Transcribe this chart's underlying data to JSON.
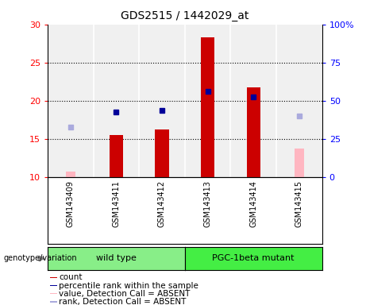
{
  "title": "GDS2515 / 1442029_at",
  "samples": [
    "GSM143409",
    "GSM143411",
    "GSM143412",
    "GSM143413",
    "GSM143414",
    "GSM143415"
  ],
  "ylim_left": [
    10,
    30
  ],
  "ylim_right": [
    0,
    100
  ],
  "yticks_left": [
    10,
    15,
    20,
    25,
    30
  ],
  "yticks_right": [
    0,
    25,
    50,
    75,
    100
  ],
  "left_tick_labels": [
    "10",
    "15",
    "20",
    "25",
    "30"
  ],
  "right_tick_labels": [
    "0",
    "25",
    "50",
    "75",
    "100%"
  ],
  "bar_values": [
    null,
    15.5,
    16.2,
    28.3,
    21.7,
    null
  ],
  "bar_color": "#CC0000",
  "bar_absent_values": [
    10.7,
    null,
    null,
    null,
    null,
    13.7
  ],
  "bar_absent_color": "#FFB6C1",
  "blue_markers": [
    null,
    18.5,
    18.7,
    21.2,
    20.5,
    null
  ],
  "blue_color": "#000099",
  "lavender_markers": [
    16.5,
    null,
    null,
    null,
    null,
    18.0
  ],
  "lavender_color": "#AAAADD",
  "bar_width": 0.3,
  "grid_lines": [
    15,
    20,
    25
  ],
  "plot_bg": "#F0F0F0",
  "sample_bg": "#D0D0D0",
  "wt_color": "#88EE88",
  "pgc_color": "#44EE44",
  "legend_items": [
    {
      "label": "count",
      "color": "#CC0000"
    },
    {
      "label": "percentile rank within the sample",
      "color": "#000099"
    },
    {
      "label": "value, Detection Call = ABSENT",
      "color": "#FFB6C1"
    },
    {
      "label": "rank, Detection Call = ABSENT",
      "color": "#AAAADD"
    }
  ]
}
